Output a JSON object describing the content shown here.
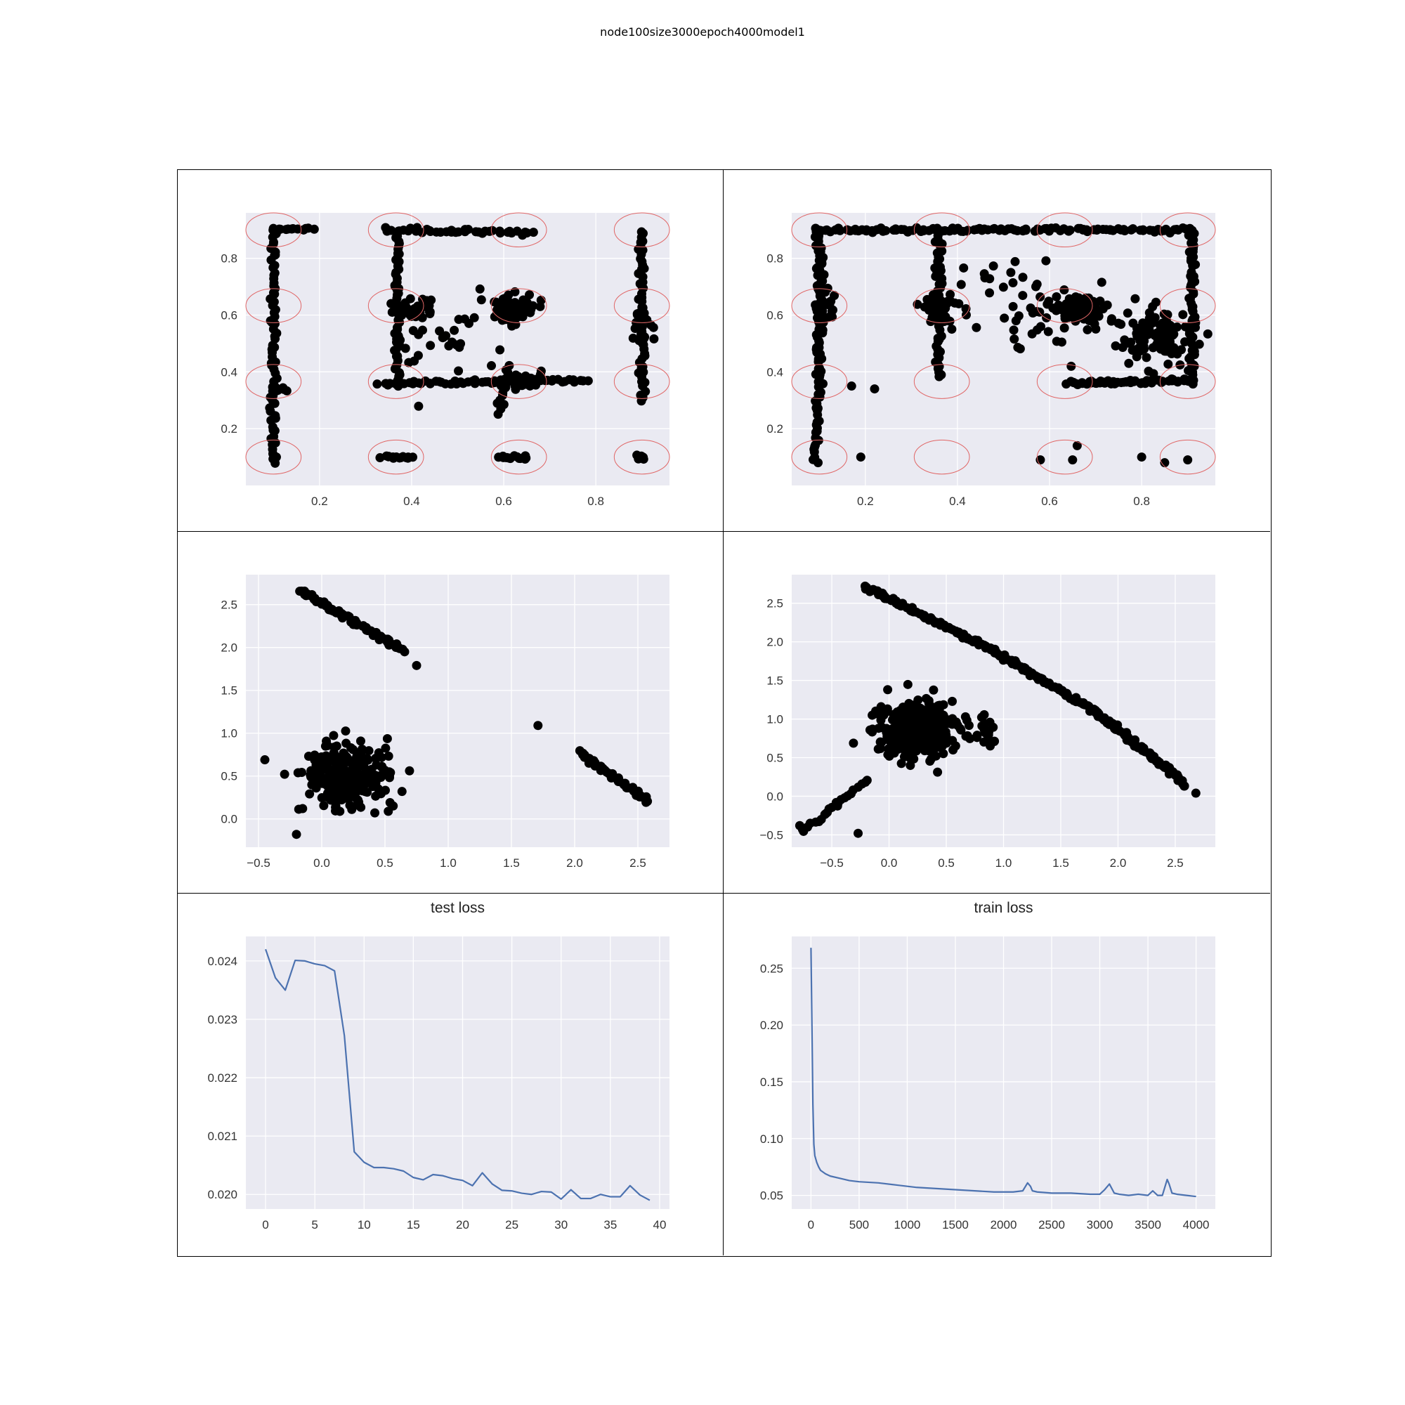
{
  "figure": {
    "title": "node100size3000epoch4000model1"
  },
  "colors": {
    "panel_bg": "#eaeaf2",
    "grid": "#ffffff",
    "point": "#000000",
    "circle": "#e06666",
    "line": "#4c72b0"
  },
  "chart_data": [
    {
      "type": "scatter",
      "title": "",
      "xlim": [
        0.04,
        0.96
      ],
      "ylim": [
        0.0,
        0.96
      ],
      "xticks": [
        0.2,
        0.4,
        0.6,
        0.8
      ],
      "yticks": [
        0.2,
        0.4,
        0.6,
        0.8
      ],
      "grid": true,
      "target_circles": {
        "centers_x": [
          0.1,
          0.366,
          0.633,
          0.9
        ],
        "centers_y": [
          0.1,
          0.366,
          0.633,
          0.9
        ],
        "radius_x": 0.06,
        "radius_y": 0.06
      },
      "series": [
        {
          "marker": "point",
          "segments": [
            {
              "from": [
                0.1,
                0.08
              ],
              "to": [
                0.1,
                0.91
              ],
              "n": 70
            },
            {
              "from": [
                0.1,
                0.9
              ],
              "to": [
                0.18,
                0.9
              ],
              "n": 14
            },
            {
              "from": [
                0.34,
                0.9
              ],
              "to": [
                0.66,
                0.89
              ],
              "n": 40
            },
            {
              "from": [
                0.33,
                0.36
              ],
              "to": [
                0.78,
                0.37
              ],
              "n": 60
            },
            {
              "from": [
                0.37,
                0.35
              ],
              "to": [
                0.37,
                0.88
              ],
              "n": 55
            },
            {
              "from": [
                0.9,
                0.3
              ],
              "to": [
                0.9,
                0.9
              ],
              "n": 55
            },
            {
              "from": [
                0.59,
                0.25
              ],
              "to": [
                0.61,
                0.42
              ],
              "n": 14
            },
            {
              "from": [
                0.34,
                0.1
              ],
              "to": [
                0.4,
                0.1
              ],
              "n": 14
            },
            {
              "from": [
                0.59,
                0.1
              ],
              "to": [
                0.65,
                0.1
              ],
              "n": 14
            },
            {
              "from": [
                0.1,
                0.34
              ],
              "to": [
                0.13,
                0.34
              ],
              "n": 6
            }
          ],
          "clusters": [
            {
              "center": [
                0.62,
                0.62
              ],
              "spread": [
                0.04,
                0.04
              ],
              "n": 60
            },
            {
              "center": [
                0.4,
                0.62
              ],
              "spread": [
                0.04,
                0.03
              ],
              "n": 30
            },
            {
              "center": [
                0.63,
                0.37
              ],
              "spread": [
                0.04,
                0.02
              ],
              "n": 30
            },
            {
              "center": [
                0.9,
                0.56
              ],
              "spread": [
                0.02,
                0.04
              ],
              "n": 14
            },
            {
              "center": [
                0.5,
                0.55
              ],
              "spread": [
                0.12,
                0.15
              ],
              "n": 40
            },
            {
              "center": [
                0.9,
                0.1
              ],
              "spread": [
                0.01,
                0.01
              ],
              "n": 6
            }
          ]
        }
      ]
    },
    {
      "type": "scatter",
      "title": "",
      "xlim": [
        0.04,
        0.96
      ],
      "ylim": [
        0.0,
        0.96
      ],
      "xticks": [
        0.2,
        0.4,
        0.6,
        0.8
      ],
      "yticks": [
        0.2,
        0.4,
        0.6,
        0.8
      ],
      "grid": true,
      "target_circles": {
        "centers_x": [
          0.1,
          0.366,
          0.633,
          0.9
        ],
        "centers_y": [
          0.1,
          0.366,
          0.633,
          0.9
        ],
        "radius_x": 0.06,
        "radius_y": 0.06
      },
      "series": [
        {
          "marker": "point",
          "segments": [
            {
              "from": [
                0.09,
                0.9
              ],
              "to": [
                0.91,
                0.9
              ],
              "n": 120
            },
            {
              "from": [
                0.1,
                0.4
              ],
              "to": [
                0.1,
                0.9
              ],
              "n": 60
            },
            {
              "from": [
                0.09,
                0.08
              ],
              "to": [
                0.1,
                0.4
              ],
              "n": 30
            },
            {
              "from": [
                0.91,
                0.36
              ],
              "to": [
                0.91,
                0.9
              ],
              "n": 60
            },
            {
              "from": [
                0.36,
                0.38
              ],
              "to": [
                0.36,
                0.88
              ],
              "n": 50
            },
            {
              "from": [
                0.64,
                0.36
              ],
              "to": [
                0.91,
                0.37
              ],
              "n": 60
            }
          ],
          "clusters": [
            {
              "center": [
                0.83,
                0.53
              ],
              "spread": [
                0.06,
                0.08
              ],
              "n": 110
            },
            {
              "center": [
                0.67,
                0.62
              ],
              "spread": [
                0.05,
                0.04
              ],
              "n": 60
            },
            {
              "center": [
                0.11,
                0.63
              ],
              "spread": [
                0.02,
                0.05
              ],
              "n": 30
            },
            {
              "center": [
                0.36,
                0.62
              ],
              "spread": [
                0.03,
                0.05
              ],
              "n": 40
            },
            {
              "center": [
                0.55,
                0.62
              ],
              "spread": [
                0.14,
                0.14
              ],
              "n": 50
            }
          ],
          "points": [
            [
              0.19,
              0.1
            ],
            [
              0.58,
              0.09
            ],
            [
              0.65,
              0.09
            ],
            [
              0.66,
              0.14
            ],
            [
              0.8,
              0.1
            ],
            [
              0.85,
              0.08
            ],
            [
              0.9,
              0.09
            ],
            [
              0.17,
              0.35
            ],
            [
              0.22,
              0.34
            ]
          ]
        }
      ]
    },
    {
      "type": "scatter",
      "title": "",
      "xlim": [
        -0.6,
        2.75
      ],
      "ylim": [
        -0.33,
        2.85
      ],
      "xticks": [
        -0.5,
        0.0,
        0.5,
        1.0,
        1.5,
        2.0,
        2.5
      ],
      "yticks": [
        0.0,
        0.5,
        1.0,
        1.5,
        2.0,
        2.5
      ],
      "grid": true,
      "series": [
        {
          "marker": "point",
          "segments": [
            {
              "from": [
                -0.17,
                2.66
              ],
              "to": [
                0.65,
                1.96
              ],
              "n": 70
            },
            {
              "from": [
                2.04,
                0.77
              ],
              "to": [
                2.58,
                0.21
              ],
              "n": 45
            }
          ],
          "clusters": [
            {
              "center": [
                0.2,
                0.5
              ],
              "spread": [
                0.3,
                0.32
              ],
              "n": 300
            }
          ],
          "points": [
            [
              0.75,
              1.79
            ],
            [
              1.71,
              1.09
            ],
            [
              -0.45,
              0.69
            ],
            [
              -0.2,
              -0.18
            ]
          ]
        }
      ]
    },
    {
      "type": "scatter",
      "title": "",
      "xlim": [
        -0.85,
        2.85
      ],
      "ylim": [
        -0.66,
        2.87
      ],
      "xticks": [
        -0.5,
        0.0,
        0.5,
        1.0,
        1.5,
        2.0,
        2.5
      ],
      "yticks": [
        -0.5,
        0.0,
        0.5,
        1.0,
        1.5,
        2.0,
        2.5
      ],
      "grid": true,
      "series": [
        {
          "marker": "point",
          "segments": [
            {
              "from": [
                -0.22,
                2.72
              ],
              "to": [
                0.9,
                1.9
              ],
              "n": 80
            },
            {
              "from": [
                0.9,
                1.9
              ],
              "to": [
                1.8,
                1.1
              ],
              "n": 70
            },
            {
              "from": [
                1.8,
                1.1
              ],
              "to": [
                2.6,
                0.15
              ],
              "n": 80
            },
            {
              "from": [
                -0.75,
                -0.45
              ],
              "to": [
                -0.2,
                0.2
              ],
              "n": 25
            }
          ],
          "clusters": [
            {
              "center": [
                0.25,
                0.85
              ],
              "spread": [
                0.28,
                0.3
              ],
              "n": 350
            },
            {
              "center": [
                0.85,
                0.8
              ],
              "spread": [
                0.08,
                0.2
              ],
              "n": 20
            }
          ],
          "points": [
            [
              2.68,
              0.04
            ],
            [
              -0.27,
              -0.48
            ],
            [
              -0.78,
              -0.38
            ]
          ]
        }
      ]
    },
    {
      "type": "line",
      "title": "test loss",
      "xlim": [
        -2,
        41
      ],
      "ylim": [
        0.01975,
        0.02442
      ],
      "xticks": [
        0,
        5,
        10,
        15,
        20,
        25,
        30,
        35,
        40
      ],
      "yticks": [
        0.02,
        0.021,
        0.022,
        0.023,
        0.024
      ],
      "ytick_labels": [
        "0.020",
        "0.021",
        "0.022",
        "0.023",
        "0.024"
      ],
      "grid": true,
      "x": [
        0,
        1,
        2,
        3,
        4,
        5,
        6,
        7,
        8,
        9,
        10,
        11,
        12,
        13,
        14,
        15,
        16,
        17,
        18,
        19,
        20,
        21,
        22,
        23,
        24,
        25,
        26,
        27,
        28,
        29,
        30,
        31,
        32,
        33,
        34,
        35,
        36,
        37,
        38,
        39
      ],
      "values": [
        0.0242,
        0.02371,
        0.0235,
        0.02401,
        0.024,
        0.02395,
        0.02392,
        0.02383,
        0.02272,
        0.02073,
        0.02055,
        0.02046,
        0.02046,
        0.02044,
        0.0204,
        0.02029,
        0.02025,
        0.02034,
        0.02032,
        0.02027,
        0.02024,
        0.02015,
        0.02037,
        0.02018,
        0.02007,
        0.02006,
        0.02002,
        0.02,
        0.02005,
        0.02004,
        0.01992,
        0.02008,
        0.01993,
        0.01993,
        0.02,
        0.01996,
        0.01996,
        0.02015,
        0.01999,
        0.0199
      ]
    },
    {
      "type": "line",
      "title": "train loss",
      "xlim": [
        -200,
        4200
      ],
      "ylim": [
        0.038,
        0.278
      ],
      "xticks": [
        0,
        500,
        1000,
        1500,
        2000,
        2500,
        3000,
        3500,
        4000
      ],
      "yticks": [
        0.05,
        0.1,
        0.15,
        0.2,
        0.25
      ],
      "ytick_labels": [
        "0.05",
        "0.10",
        "0.15",
        "0.20",
        "0.25"
      ],
      "grid": true,
      "x": [
        0,
        10,
        20,
        30,
        40,
        50,
        60,
        80,
        100,
        150,
        200,
        300,
        400,
        500,
        700,
        900,
        1000,
        1100,
        1300,
        1500,
        1700,
        1900,
        2100,
        2200,
        2250,
        2280,
        2300,
        2350,
        2500,
        2700,
        2900,
        3000,
        3050,
        3100,
        3150,
        3200,
        3300,
        3400,
        3500,
        3550,
        3600,
        3650,
        3700,
        3720,
        3750,
        3800,
        3900,
        4000
      ],
      "values": [
        0.268,
        0.2,
        0.13,
        0.095,
        0.085,
        0.082,
        0.079,
        0.075,
        0.072,
        0.069,
        0.067,
        0.065,
        0.063,
        0.062,
        0.061,
        0.059,
        0.058,
        0.057,
        0.056,
        0.055,
        0.054,
        0.053,
        0.053,
        0.054,
        0.061,
        0.058,
        0.054,
        0.053,
        0.052,
        0.052,
        0.051,
        0.051,
        0.055,
        0.06,
        0.052,
        0.051,
        0.05,
        0.051,
        0.05,
        0.054,
        0.05,
        0.05,
        0.064,
        0.06,
        0.052,
        0.051,
        0.05,
        0.049
      ]
    }
  ]
}
